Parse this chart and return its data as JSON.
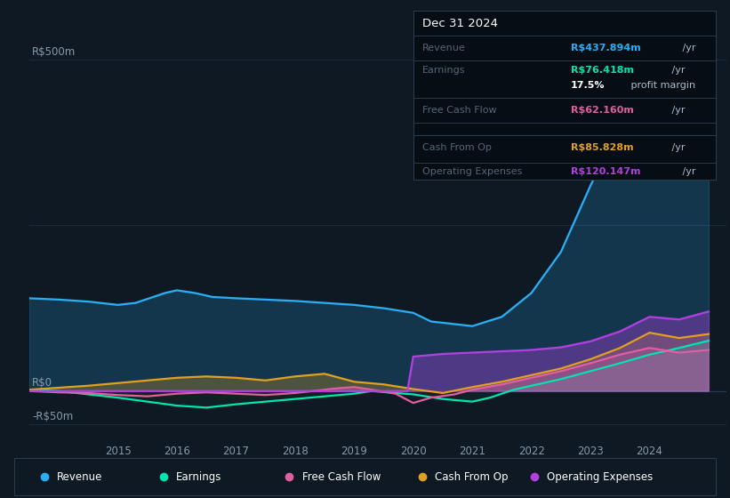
{
  "background_color": "#0e1923",
  "chart_bg": "#0e1923",
  "ylim": [
    -75,
    560
  ],
  "xlim": [
    2013.5,
    2025.3
  ],
  "x_ticks": [
    2015,
    2016,
    2017,
    2018,
    2019,
    2020,
    2021,
    2022,
    2023,
    2024
  ],
  "y_label_top": "R$500m",
  "y_label_zero": "R$0",
  "y_label_neg": "-R$50m",
  "revenue_color": "#2aaff5",
  "earnings_color": "#00e5b0",
  "fcf_color": "#e05fa0",
  "cashfromop_color": "#e0a020",
  "opex_color": "#b040e0",
  "grid_color": "#1a2d40",
  "zero_line_color": "#253a50",
  "info_box": {
    "title": "Dec 31 2024",
    "revenue_label": "Revenue",
    "revenue_value": "R$437.894m",
    "revenue_yr": " /yr",
    "revenue_color": "#2aaff5",
    "earnings_label": "Earnings",
    "earnings_value": "R$76.418m",
    "earnings_yr": " /yr",
    "earnings_color": "#00e5b0",
    "margin_bold": "17.5%",
    "margin_rest": " profit margin",
    "fcf_label": "Free Cash Flow",
    "fcf_value": "R$62.160m",
    "fcf_yr": " /yr",
    "fcf_color": "#e05fa0",
    "cashop_label": "Cash From Op",
    "cashop_value": "R$85.828m",
    "cashop_yr": " /yr",
    "cashop_color": "#e0a020",
    "opex_label": "Operating Expenses",
    "opex_value": "R$120.147m",
    "opex_yr": " /yr",
    "opex_color": "#b040e0"
  },
  "legend": [
    {
      "label": "Revenue",
      "color": "#2aaff5"
    },
    {
      "label": "Earnings",
      "color": "#00e5b0"
    },
    {
      "label": "Free Cash Flow",
      "color": "#e05fa0"
    },
    {
      "label": "Cash From Op",
      "color": "#e0a020"
    },
    {
      "label": "Operating Expenses",
      "color": "#b040e0"
    }
  ],
  "revenue_x": [
    2013.5,
    2014.0,
    2014.5,
    2015.0,
    2015.3,
    2015.8,
    2016.0,
    2016.3,
    2016.6,
    2017.0,
    2017.5,
    2018.0,
    2018.5,
    2019.0,
    2019.5,
    2020.0,
    2020.3,
    2020.8,
    2021.0,
    2021.5,
    2022.0,
    2022.5,
    2023.0,
    2023.5,
    2024.0,
    2024.5,
    2025.0
  ],
  "revenue_y": [
    140,
    138,
    135,
    130,
    133,
    148,
    152,
    148,
    142,
    140,
    138,
    136,
    133,
    130,
    125,
    118,
    105,
    100,
    98,
    112,
    148,
    210,
    310,
    400,
    460,
    425,
    438
  ],
  "earnings_x": [
    2013.5,
    2014.0,
    2014.5,
    2015.0,
    2015.5,
    2016.0,
    2016.5,
    2017.0,
    2017.5,
    2018.0,
    2018.5,
    2019.0,
    2019.3,
    2019.7,
    2020.0,
    2020.5,
    2021.0,
    2021.3,
    2021.7,
    2022.0,
    2022.5,
    2023.0,
    2023.5,
    2024.0,
    2024.5,
    2025.0
  ],
  "earnings_y": [
    2,
    0,
    -5,
    -10,
    -16,
    -22,
    -25,
    -20,
    -16,
    -12,
    -8,
    -4,
    0,
    -3,
    -5,
    -12,
    -16,
    -10,
    2,
    8,
    18,
    30,
    42,
    55,
    65,
    76
  ],
  "fcf_x": [
    2013.5,
    2014.0,
    2014.5,
    2015.0,
    2015.5,
    2016.0,
    2016.5,
    2017.0,
    2017.5,
    2018.0,
    2018.3,
    2018.7,
    2019.0,
    2019.3,
    2019.7,
    2020.0,
    2020.3,
    2020.7,
    2021.0,
    2021.5,
    2022.0,
    2022.5,
    2023.0,
    2023.5,
    2024.0,
    2024.5,
    2025.0
  ],
  "fcf_y": [
    0,
    -2,
    -3,
    -6,
    -8,
    -4,
    -2,
    -4,
    -6,
    -3,
    0,
    4,
    6,
    2,
    -4,
    -18,
    -10,
    -5,
    2,
    10,
    20,
    30,
    42,
    55,
    65,
    58,
    62
  ],
  "cashop_x": [
    2013.5,
    2014.0,
    2014.5,
    2015.0,
    2015.5,
    2016.0,
    2016.5,
    2017.0,
    2017.5,
    2018.0,
    2018.5,
    2019.0,
    2019.5,
    2020.0,
    2020.5,
    2021.0,
    2021.5,
    2022.0,
    2022.5,
    2023.0,
    2023.5,
    2024.0,
    2024.5,
    2025.0
  ],
  "cashop_y": [
    2,
    5,
    8,
    12,
    16,
    20,
    22,
    20,
    16,
    22,
    26,
    14,
    10,
    3,
    -3,
    6,
    14,
    24,
    34,
    48,
    65,
    88,
    80,
    86
  ],
  "opex_x": [
    2013.5,
    2014.0,
    2014.5,
    2015.0,
    2015.5,
    2016.0,
    2016.5,
    2017.0,
    2017.5,
    2018.0,
    2018.5,
    2019.0,
    2019.5,
    2019.9,
    2020.0,
    2020.5,
    2021.0,
    2021.5,
    2022.0,
    2022.5,
    2023.0,
    2023.5,
    2024.0,
    2024.5,
    2025.0
  ],
  "opex_y": [
    0,
    0,
    0,
    0,
    0,
    0,
    0,
    0,
    0,
    0,
    0,
    0,
    0,
    0,
    52,
    56,
    58,
    60,
    62,
    66,
    75,
    90,
    112,
    108,
    120
  ]
}
